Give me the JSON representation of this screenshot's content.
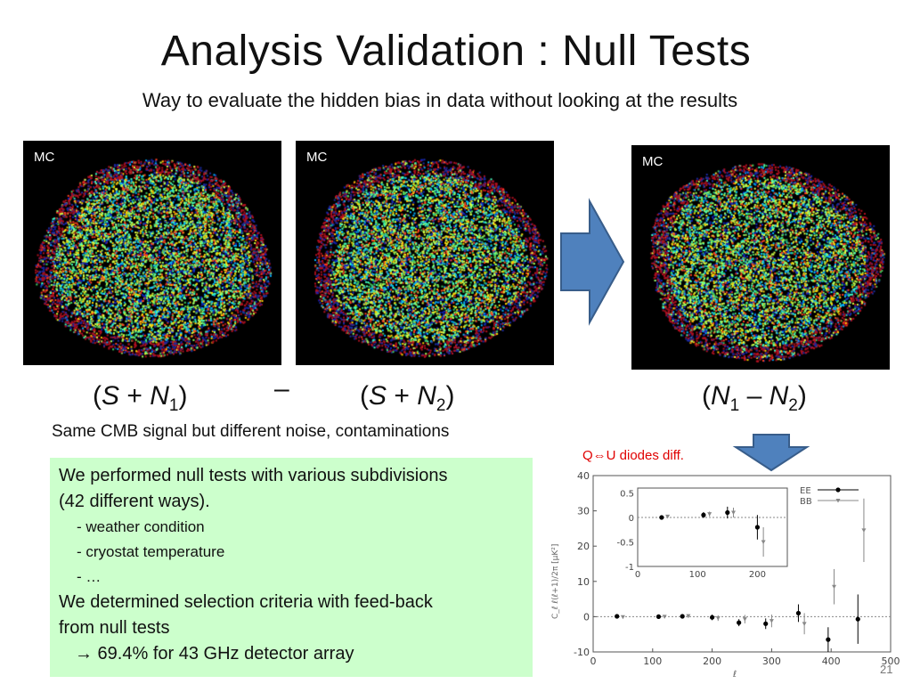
{
  "slide": {
    "title": "Analysis Validation : Null Tests",
    "subtitle": "Way to evaluate the hidden bias in data without looking at the results",
    "slide_number": "21"
  },
  "maps": [
    {
      "label": "MC"
    },
    {
      "label": "MC"
    },
    {
      "label": "MC"
    }
  ],
  "formulas": {
    "left": {
      "open": "(",
      "s": "S",
      "plus": " + ",
      "n": "N",
      "sub": "1",
      "close": ")"
    },
    "minus": "–",
    "right": {
      "open": "(",
      "s": "S",
      "plus": " + ",
      "n": "N",
      "sub": "2",
      "close": ")"
    },
    "result": {
      "open": "(",
      "n1": "N",
      "sub1": "1",
      "minus": " – ",
      "n2": "N",
      "sub2": "2",
      "close": ")"
    }
  },
  "note": "Same CMB signal but different noise, contaminations",
  "textbox": {
    "line1": "We performed null tests with various subdivisions",
    "line2": "(42 different ways).",
    "items": [
      "- weather condition",
      "- cryostat temperature",
      "- …"
    ],
    "line3": "We determined selection criteria with feed-back",
    "line4": "from null tests",
    "result_arrow": "→",
    "result": " 69.4% for 43 GHz detector array"
  },
  "plot_label": "Q⇔U diodes diff.",
  "colors": {
    "arrow_fill": "#4f81bd",
    "arrow_stroke": "#385d8a",
    "textbox_bg": "#ccffcc",
    "plot_label": "#e00000"
  },
  "chart_data": {
    "type": "scatter",
    "ylabel": "C_ℓ ℓ(ℓ+1)/2π [μK²]",
    "xlabel": "ℓ",
    "xlim": [
      0,
      500
    ],
    "ylim": [
      -10,
      40
    ],
    "xticks": [
      "0",
      "100",
      "200",
      "300",
      "400",
      "500"
    ],
    "yticks": [
      "-10",
      "0",
      "10",
      "20",
      "30",
      "40"
    ],
    "legend": [
      "EE",
      "BB"
    ],
    "legend_position": "top-right",
    "series": [
      {
        "name": "EE",
        "x": [
          40,
          110,
          150,
          200,
          245,
          290,
          345,
          395,
          445
        ],
        "y": [
          0.1,
          0.0,
          0.1,
          -0.2,
          -1.7,
          -2.0,
          1.0,
          -6.5,
          -0.7
        ],
        "yerr": [
          0.3,
          0.4,
          0.6,
          0.8,
          1.0,
          1.5,
          2.5,
          3.5,
          7.0
        ]
      },
      {
        "name": "BB",
        "x": [
          50,
          120,
          160,
          210,
          255,
          300,
          355,
          405,
          455
        ],
        "y": [
          -0.1,
          0.0,
          0.2,
          -0.4,
          -0.7,
          -1.2,
          -2.0,
          8.5,
          24.5
        ],
        "yerr": [
          0.2,
          0.4,
          0.5,
          0.8,
          1.2,
          1.8,
          3.0,
          5.0,
          9.0
        ]
      }
    ],
    "inset": {
      "xlim": [
        0,
        250
      ],
      "ylim": [
        -1,
        0.6
      ],
      "xticks": [
        "0",
        "100",
        "200"
      ],
      "yticks": [
        "0.5",
        "0",
        "-0.5",
        "-1"
      ],
      "series": [
        {
          "name": "EE",
          "x": [
            40,
            110,
            150,
            200
          ],
          "y": [
            0.0,
            0.05,
            0.1,
            -0.2
          ],
          "yerr": [
            0.03,
            0.06,
            0.12,
            0.25
          ]
        },
        {
          "name": "BB",
          "x": [
            50,
            120,
            160,
            210
          ],
          "y": [
            0.02,
            0.07,
            0.1,
            -0.5
          ],
          "yerr": [
            0.02,
            0.05,
            0.1,
            0.3
          ]
        }
      ]
    }
  }
}
